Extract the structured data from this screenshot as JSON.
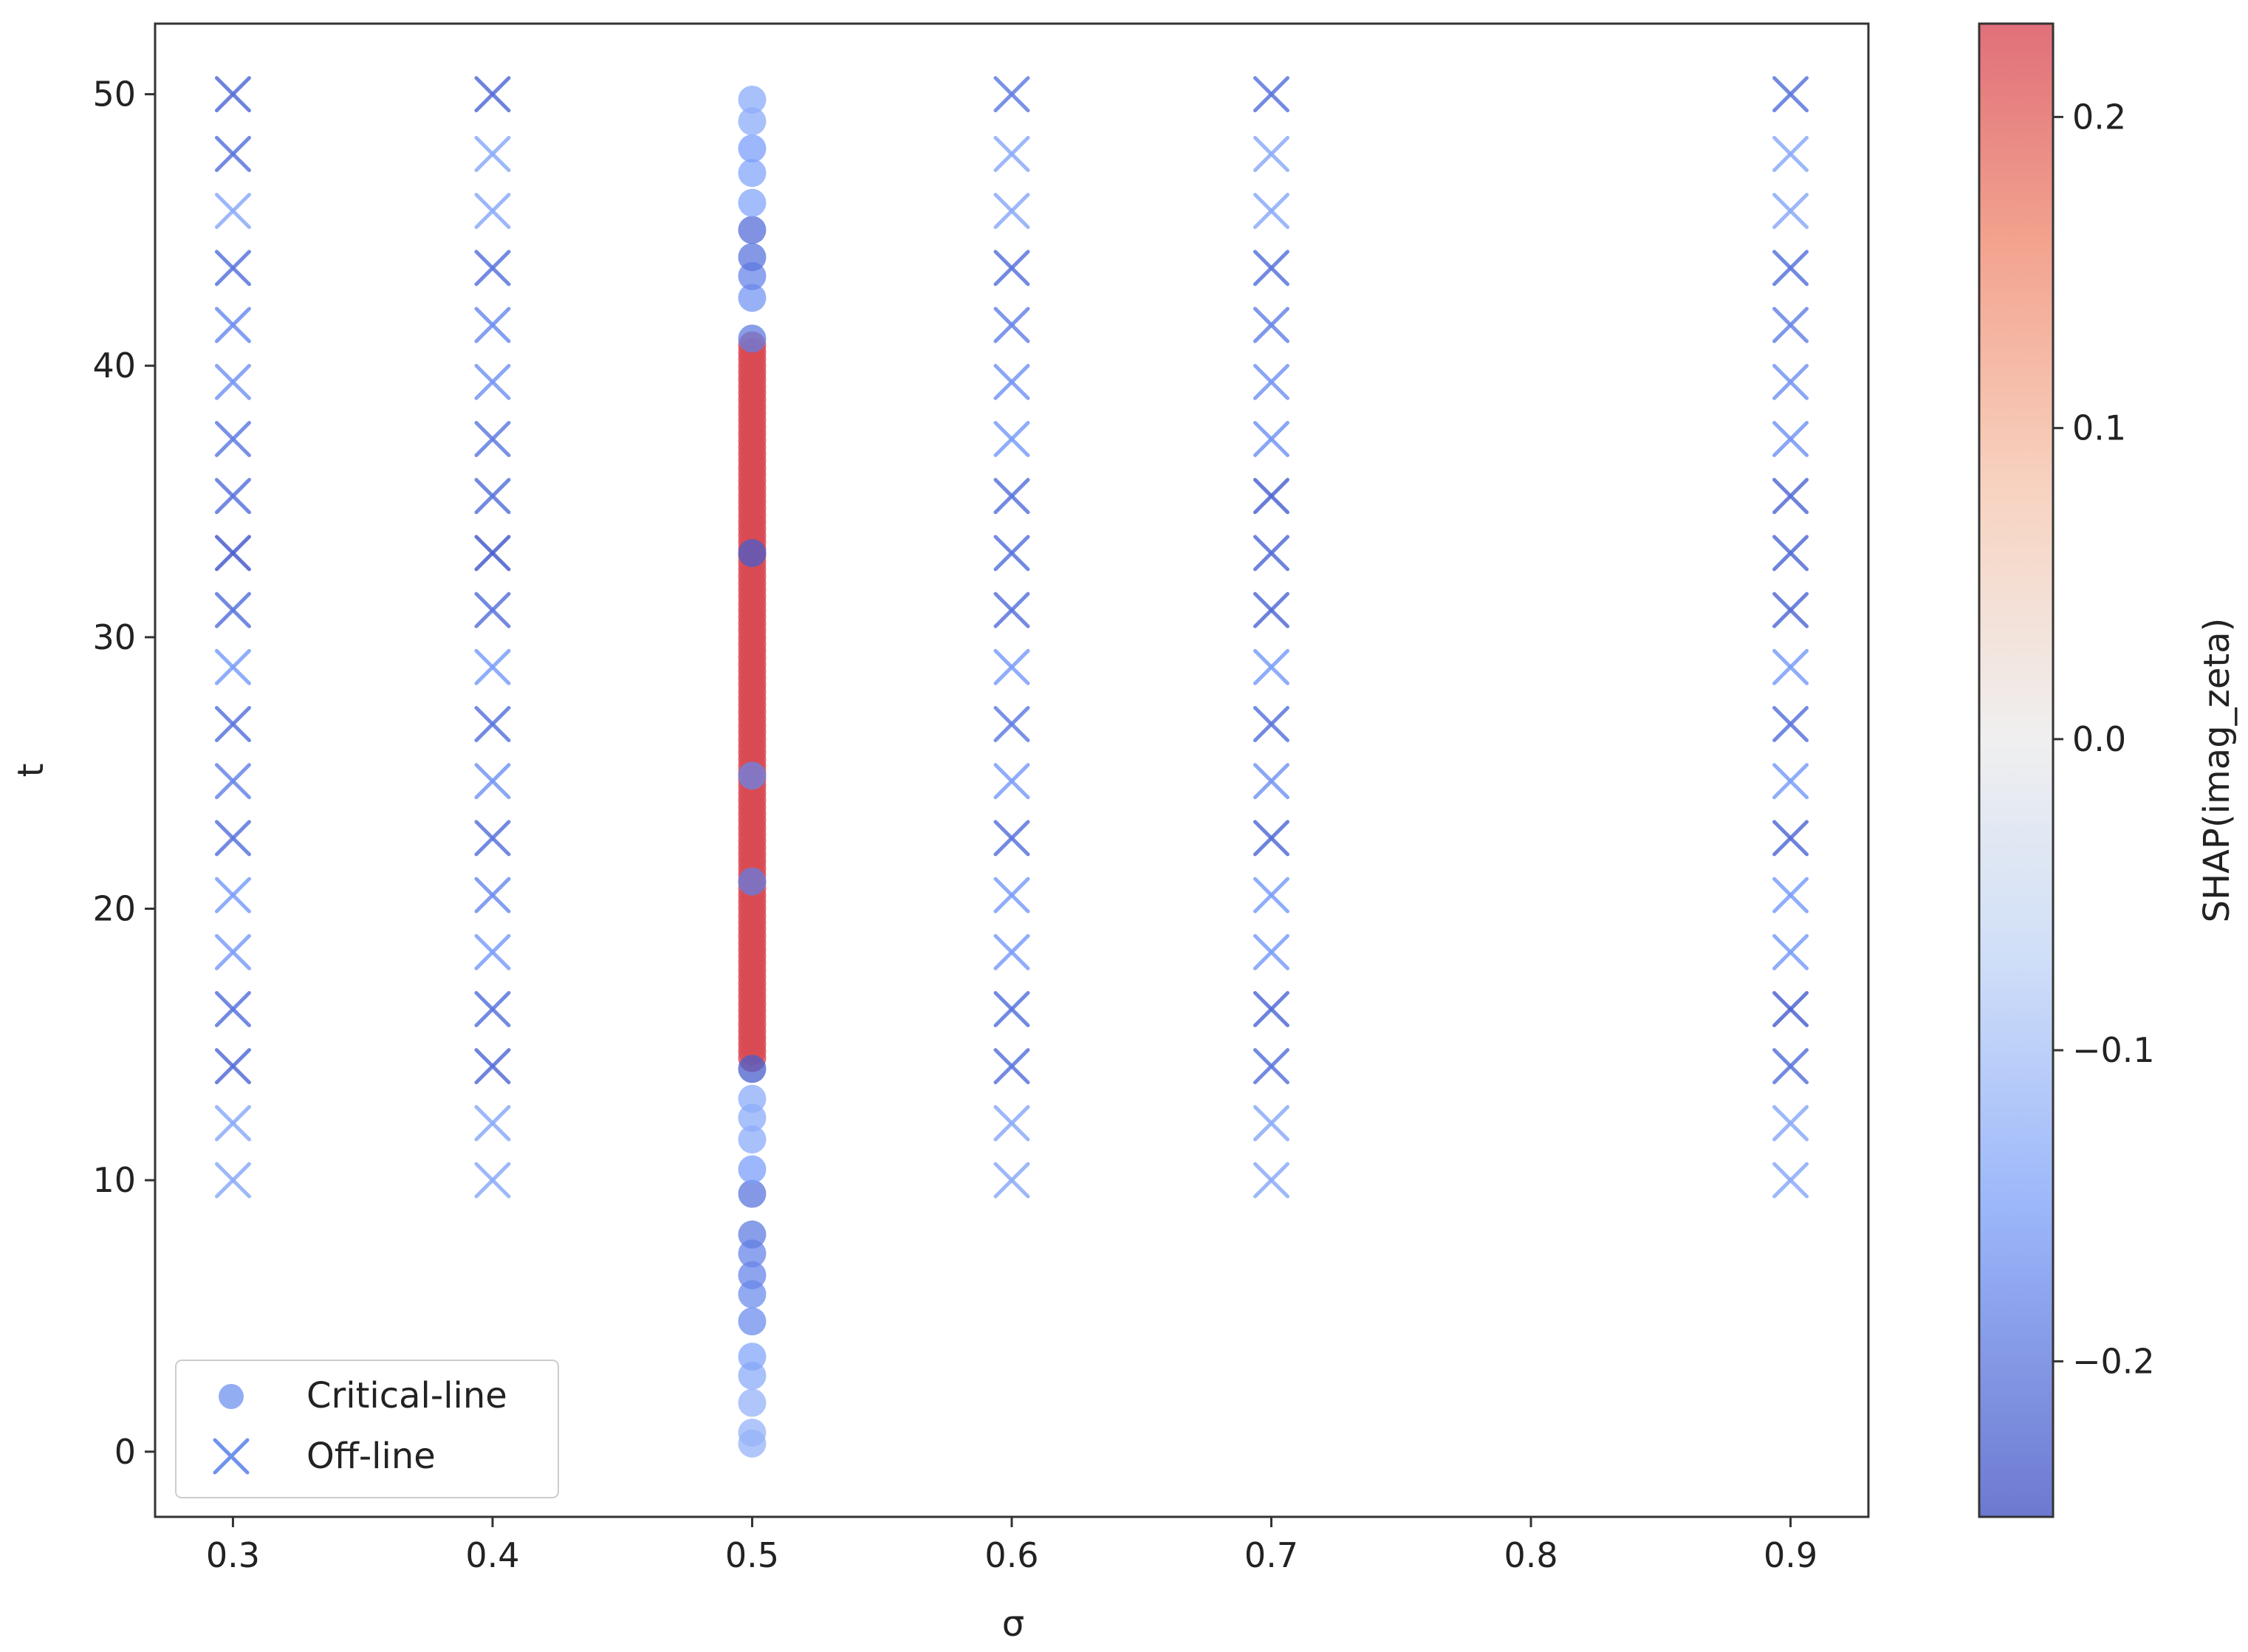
{
  "chart_data": {
    "type": "scatter",
    "xlabel": "σ",
    "ylabel": "t",
    "xlim": [
      0.27,
      0.93
    ],
    "ylim": [
      -2.4,
      52.6
    ],
    "x_ticks": [
      0.3,
      0.4,
      0.5,
      0.6,
      0.7,
      0.8,
      0.9
    ],
    "x_tick_labels": [
      "0.3",
      "0.4",
      "0.5",
      "0.6",
      "0.7",
      "0.8",
      "0.9"
    ],
    "y_ticks": [
      0,
      10,
      20,
      30,
      40,
      50
    ],
    "y_tick_labels": [
      "0",
      "10",
      "20",
      "30",
      "40",
      "50"
    ],
    "grid": false,
    "legend_position": "lower-left",
    "colormap": "coolwarm",
    "colorbar": {
      "label": "SHAP(imag_zeta)",
      "range": [
        -0.25,
        0.23
      ],
      "ticks": [
        0.2,
        0.1,
        0.0,
        -0.1,
        -0.2
      ],
      "tick_labels": [
        "0.2",
        "0.1",
        "0.0",
        "−0.1",
        "−0.2"
      ],
      "stops": [
        {
          "v": -0.25,
          "color": "#3b4cc0"
        },
        {
          "v": -0.15,
          "color": "#7b9ff9"
        },
        {
          "v": -0.07,
          "color": "#c0d4f5"
        },
        {
          "v": 0.0,
          "color": "#eaeaea"
        },
        {
          "v": 0.08,
          "color": "#f5c4ac"
        },
        {
          "v": 0.16,
          "color": "#ee8468"
        },
        {
          "v": 0.23,
          "color": "#d6404e"
        }
      ]
    },
    "series": [
      {
        "name": "Critical-line",
        "marker": "circle",
        "sigma": 0.5,
        "points": [
          {
            "t": 0.3,
            "shap": -0.12
          },
          {
            "t": 0.7,
            "shap": -0.12
          },
          {
            "t": 1.8,
            "shap": -0.12
          },
          {
            "t": 2.8,
            "shap": -0.13
          },
          {
            "t": 3.5,
            "shap": -0.14
          },
          {
            "t": 4.8,
            "shap": -0.17
          },
          {
            "t": 5.8,
            "shap": -0.17
          },
          {
            "t": 6.5,
            "shap": -0.18
          },
          {
            "t": 7.3,
            "shap": -0.18
          },
          {
            "t": 8.0,
            "shap": -0.19
          },
          {
            "t": 9.5,
            "shap": -0.2
          },
          {
            "t": 10.4,
            "shap": -0.15
          },
          {
            "t": 11.5,
            "shap": -0.13
          },
          {
            "t": 12.3,
            "shap": -0.13
          },
          {
            "t": 13.0,
            "shap": -0.13
          },
          {
            "t": 14.1,
            "shap": -0.23
          },
          {
            "t": 21.0,
            "shap": -0.19
          },
          {
            "t": 24.9,
            "shap": -0.18
          },
          {
            "t": 33.1,
            "shap": -0.23
          },
          {
            "t": 41.0,
            "shap": -0.19
          },
          {
            "t": 42.5,
            "shap": -0.16
          },
          {
            "t": 43.3,
            "shap": -0.18
          },
          {
            "t": 44.0,
            "shap": -0.2
          },
          {
            "t": 45.0,
            "shap": -0.21
          },
          {
            "t": 46.0,
            "shap": -0.14
          },
          {
            "t": 47.1,
            "shap": -0.14
          },
          {
            "t": 48.0,
            "shap": -0.15
          },
          {
            "t": 49.0,
            "shap": -0.13
          },
          {
            "t": 49.8,
            "shap": -0.13
          }
        ],
        "red_band": {
          "t_from": 14.5,
          "t_to": 40.8,
          "shap": 0.22
        }
      },
      {
        "name": "Off-line",
        "marker": "x",
        "t_values": [
          10,
          12.1,
          14.2,
          16.3,
          18.4,
          20.5,
          22.6,
          24.7,
          26.8,
          28.9,
          31.0,
          33.1,
          35.2,
          37.3,
          39.4,
          41.5,
          43.6,
          45.7,
          47.8,
          50
        ],
        "columns": [
          {
            "sigma": 0.3,
            "shap": [
              -0.13,
              -0.13,
              -0.21,
              -0.2,
              -0.15,
              -0.15,
              -0.2,
              -0.18,
              -0.2,
              -0.15,
              -0.2,
              -0.23,
              -0.2,
              -0.19,
              -0.16,
              -0.17,
              -0.2,
              -0.13,
              -0.2,
              -0.21
            ]
          },
          {
            "sigma": 0.4,
            "shap": [
              -0.13,
              -0.13,
              -0.21,
              -0.2,
              -0.15,
              -0.17,
              -0.2,
              -0.16,
              -0.2,
              -0.15,
              -0.2,
              -0.23,
              -0.2,
              -0.19,
              -0.16,
              -0.17,
              -0.2,
              -0.13,
              -0.13,
              -0.21
            ]
          },
          {
            "sigma": 0.6,
            "shap": [
              -0.13,
              -0.13,
              -0.2,
              -0.2,
              -0.15,
              -0.15,
              -0.2,
              -0.15,
              -0.19,
              -0.15,
              -0.2,
              -0.2,
              -0.2,
              -0.15,
              -0.16,
              -0.18,
              -0.2,
              -0.13,
              -0.13,
              -0.19
            ]
          },
          {
            "sigma": 0.7,
            "shap": [
              -0.13,
              -0.13,
              -0.2,
              -0.21,
              -0.15,
              -0.15,
              -0.21,
              -0.16,
              -0.2,
              -0.15,
              -0.21,
              -0.21,
              -0.22,
              -0.16,
              -0.16,
              -0.18,
              -0.2,
              -0.13,
              -0.13,
              -0.2
            ]
          },
          {
            "sigma": 0.9,
            "shap": [
              -0.13,
              -0.13,
              -0.2,
              -0.22,
              -0.15,
              -0.15,
              -0.21,
              -0.15,
              -0.2,
              -0.15,
              -0.21,
              -0.21,
              -0.21,
              -0.16,
              -0.16,
              -0.18,
              -0.2,
              -0.13,
              -0.13,
              -0.2
            ]
          }
        ]
      }
    ]
  }
}
